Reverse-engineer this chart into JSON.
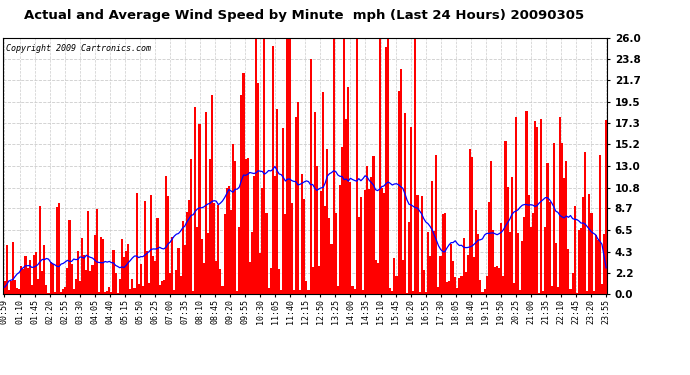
{
  "title": "Actual and Average Wind Speed by Minute  mph (Last 24 Hours) 20090305",
  "copyright": "Copyright 2009 Cartronics.com",
  "background_color": "#ffffff",
  "plot_bg_color": "#ffffff",
  "bar_color": "#ff0000",
  "line_color": "#0000ff",
  "grid_color": "#cccccc",
  "yticks": [
    0.0,
    2.2,
    4.3,
    6.5,
    8.7,
    10.8,
    13.0,
    15.2,
    17.3,
    19.5,
    21.7,
    23.8,
    26.0
  ],
  "ymax": 26.0,
  "ymin": 0.0,
  "n_points": 288,
  "seed": 42,
  "x_labels": [
    "00:59",
    "01:10",
    "01:45",
    "02:20",
    "02:55",
    "03:30",
    "04:05",
    "04:40",
    "05:15",
    "05:50",
    "06:25",
    "07:00",
    "07:35",
    "08:10",
    "08:45",
    "09:20",
    "09:55",
    "10:30",
    "11:05",
    "11:40",
    "12:15",
    "12:50",
    "13:25",
    "14:00",
    "14:35",
    "15:10",
    "15:45",
    "16:20",
    "16:55",
    "17:30",
    "18:05",
    "18:40",
    "19:15",
    "19:50",
    "20:25",
    "21:00",
    "21:35",
    "22:10",
    "22:45",
    "23:20",
    "23:55"
  ]
}
